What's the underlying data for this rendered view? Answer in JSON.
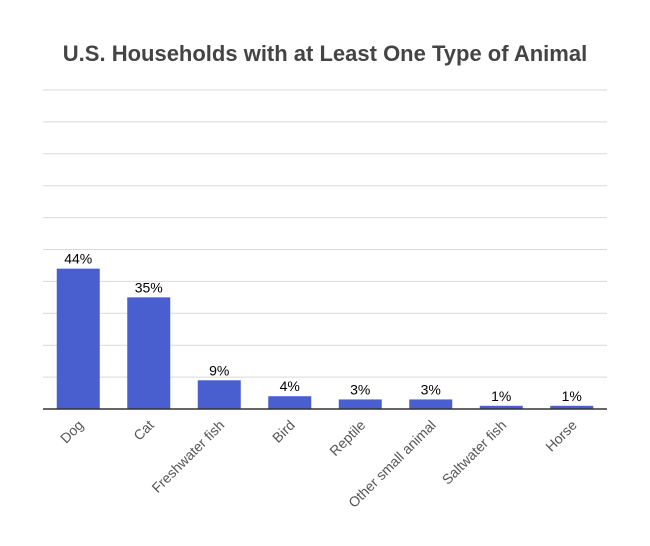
{
  "chart_data": {
    "type": "bar",
    "title": "U.S. Households with at Least One Type of Animal",
    "xlabel": "",
    "ylabel": "",
    "categories": [
      "Dog",
      "Cat",
      "Freshwater fish",
      "Bird",
      "Reptile",
      "Other small animal",
      "Saltwater fish",
      "Horse"
    ],
    "values": [
      44,
      35,
      9,
      4,
      3,
      3,
      1,
      1
    ],
    "data_labels": [
      "44%",
      "35%",
      "9%",
      "4%",
      "3%",
      "3%",
      "1%",
      "1%"
    ],
    "unit": "%",
    "ylim": [
      0,
      100
    ],
    "grid": true,
    "legend": "none",
    "bar_color": "#4a5fcf",
    "x_tick_rotation": "-45"
  }
}
